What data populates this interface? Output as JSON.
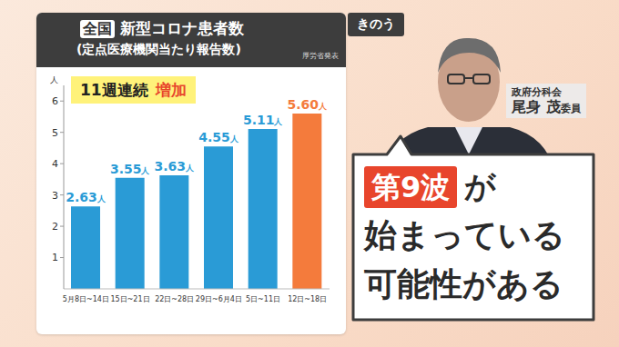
{
  "chart_data": {
    "type": "bar",
    "title_badge": "全国",
    "title": "新型コロナ患者数",
    "subtitle": "(定点医療機関当たり報告数)",
    "source": "厚労省発表",
    "annotation": {
      "text": "11週連続",
      "highlight": "増加"
    },
    "y_label": "人",
    "categories": [
      "5月8日~14日",
      "15日~21日",
      "22日~28日",
      "29日~6月4日",
      "5日~11日",
      "12日~18日"
    ],
    "values": [
      2.63,
      3.55,
      3.63,
      4.55,
      5.11,
      5.6
    ],
    "value_labels": [
      "2.63人",
      "3.55人",
      "3.63人",
      "4.55人",
      "5.11人",
      "5.60人"
    ],
    "colors": [
      "#2a9bd6",
      "#2a9bd6",
      "#2a9bd6",
      "#2a9bd6",
      "#2a9bd6",
      "#f47b3c"
    ],
    "ylim": [
      0,
      6.5
    ],
    "yticks": [
      1,
      2,
      3,
      4,
      5,
      6
    ],
    "grid": false,
    "data_labels": true
  },
  "overlay": {
    "time_tag": "きのう",
    "name_tag": {
      "org": "政府分科会",
      "name": "尾身 茂",
      "role": "委員"
    },
    "quote": {
      "highlight": "第9波",
      "lines": [
        "が",
        "始まっている",
        "可能性がある"
      ]
    }
  }
}
